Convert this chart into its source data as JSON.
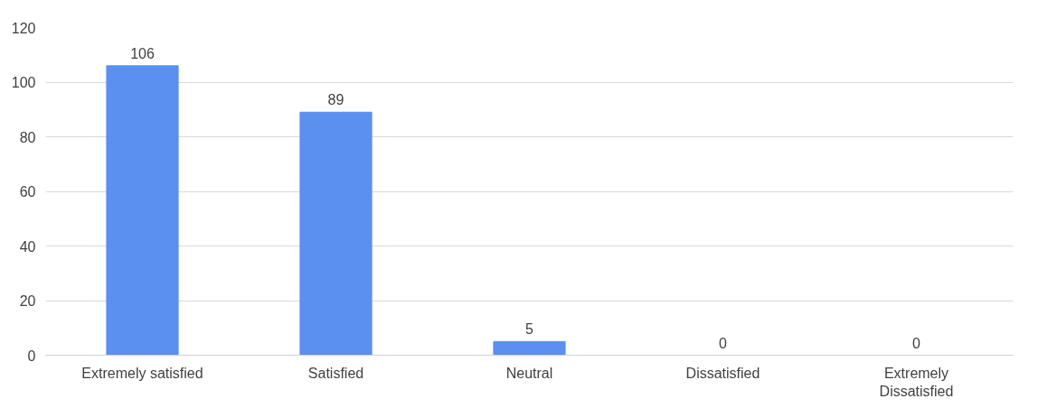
{
  "chart_data": {
    "type": "bar",
    "categories": [
      "Extremely satisfied",
      "Satisfied",
      "Neutral",
      "Dissatisfied",
      "Extremely Dissatisfied"
    ],
    "values": [
      106,
      89,
      5,
      0,
      0
    ],
    "color": "#5b8ff0",
    "ylim": [
      0,
      120
    ],
    "yticks": [
      0,
      20,
      40,
      60,
      80,
      100,
      120
    ],
    "grid": "y",
    "data_labels": true
  }
}
